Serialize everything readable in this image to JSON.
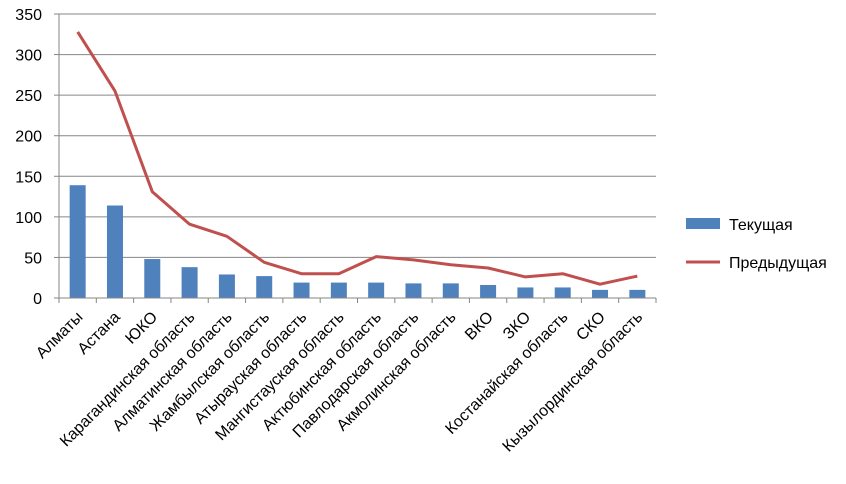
{
  "chart_data": {
    "type": "bar",
    "categories": [
      "Алматы",
      "Астана",
      "ЮКО",
      "Карагандинская область",
      "Алматинская область",
      "Жамбылская область",
      "Атырауская область",
      "Мангистауская область",
      "Актюбинская область",
      "Павлодарская область",
      "Акмолинская область",
      "ВКО",
      "ЗКО",
      "Костанайская область",
      "СКО",
      "Кызылординская область"
    ],
    "series": [
      {
        "name": "Текущая",
        "type": "bar",
        "color": "#4F81BD",
        "values": [
          139,
          114,
          48,
          38,
          29,
          27,
          19,
          19,
          19,
          18,
          18,
          16,
          13,
          13,
          10,
          10
        ]
      },
      {
        "name": "Предыдущая",
        "type": "line",
        "color": "#C0504D",
        "values": [
          328,
          255,
          131,
          91,
          76,
          44,
          30,
          30,
          51,
          47,
          41,
          37,
          26,
          30,
          17,
          27
        ]
      }
    ],
    "y_ticks": [
      "0",
      "50",
      "100",
      "150",
      "200",
      "250",
      "300",
      "350"
    ],
    "ylim": [
      0,
      350
    ],
    "grid": true,
    "legend_position": "right",
    "title": "",
    "xlabel": "",
    "ylabel": ""
  }
}
